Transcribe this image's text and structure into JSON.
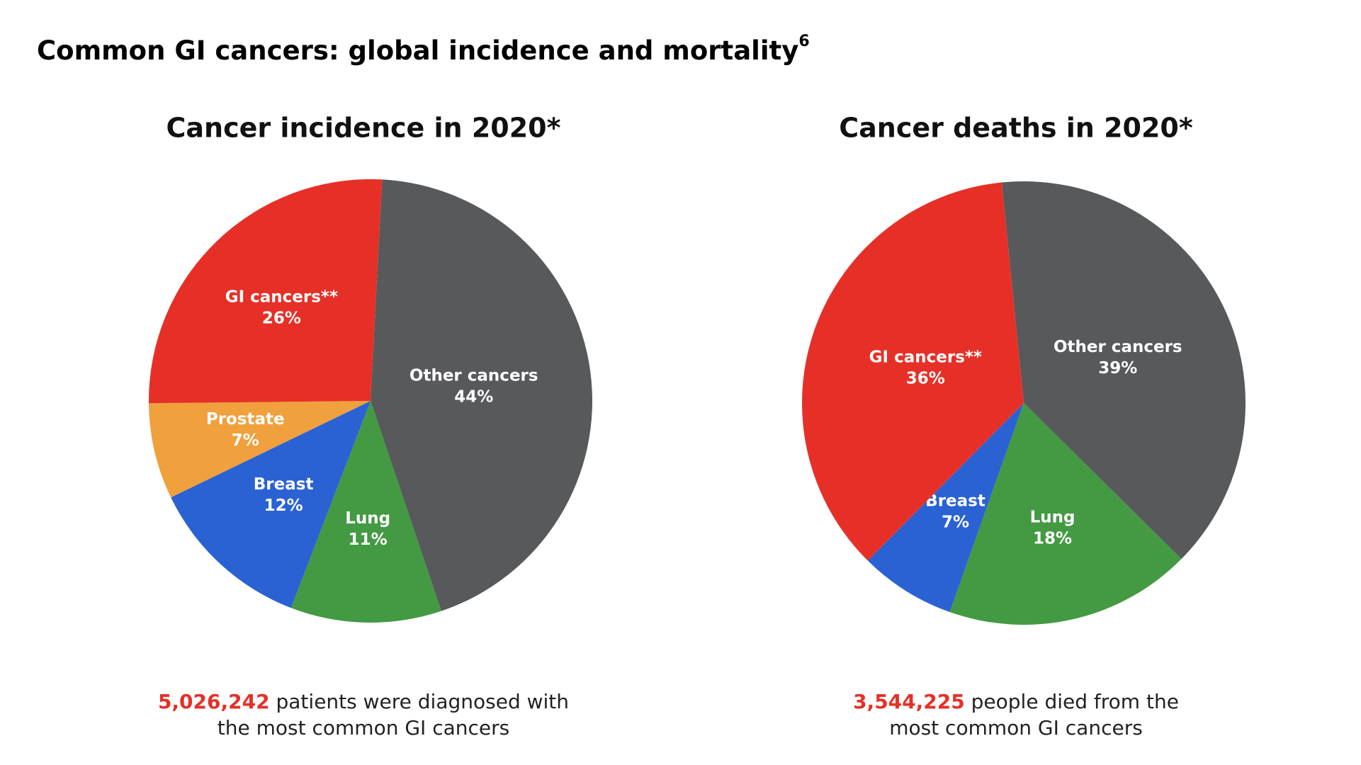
{
  "title": "Common GI cancers: global incidence and mortality",
  "title_ref": "6",
  "chart_data": [
    {
      "type": "pie",
      "title": "Cancer incidence in 2020*",
      "categories": [
        "Other cancers",
        "Lung",
        "Breast",
        "Prostate",
        "GI cancers**"
      ],
      "values": [
        44,
        11,
        12,
        7,
        26
      ],
      "value_labels": [
        "44%",
        "11%",
        "12%",
        "7%",
        "26%"
      ],
      "colors": [
        "#58595b",
        "#439a43",
        "#2a62d3",
        "#f0a03c",
        "#e63027"
      ],
      "note": {
        "highlight": "5,026,242",
        "lines": [
          "patients were diagnosed with",
          "the most common GI cancers"
        ]
      }
    },
    {
      "type": "pie",
      "title": "Cancer deaths in 2020*",
      "categories": [
        "Other cancers",
        "Lung",
        "Breast",
        "GI cancers**"
      ],
      "values": [
        39,
        18,
        7,
        36
      ],
      "value_labels": [
        "39%",
        "18%",
        "7%",
        "36%"
      ],
      "colors": [
        "#58595b",
        "#439a43",
        "#2a62d3",
        "#e63027"
      ],
      "note": {
        "highlight": "3,544,225",
        "lines": [
          "people died from the",
          "most common GI cancers"
        ]
      }
    }
  ]
}
